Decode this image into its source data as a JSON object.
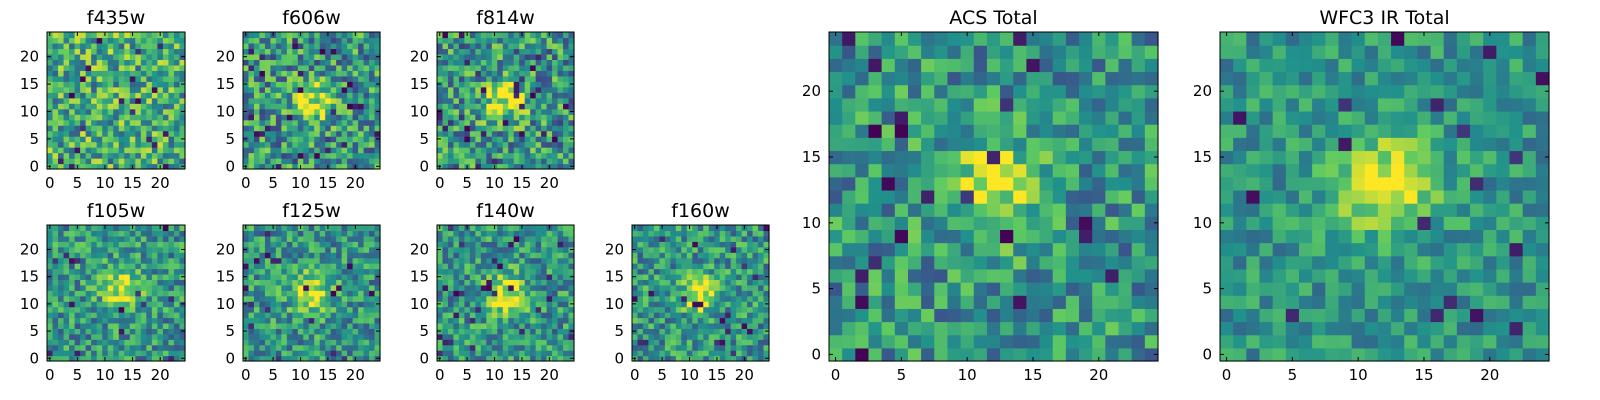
{
  "figure": {
    "colormap": "viridis",
    "colors": [
      "#440154",
      "#3b528b",
      "#21918c",
      "#5ec962",
      "#fde725"
    ]
  },
  "chart_data": [
    {
      "type": "heatmap",
      "title": "f435w",
      "grid": [
        25,
        25
      ],
      "xticks": [
        0,
        5,
        10,
        15,
        20
      ],
      "yticks": [
        0,
        5,
        10,
        15,
        20
      ],
      "xlim": [
        -0.5,
        24.5
      ],
      "ylim": [
        -0.5,
        24.5
      ],
      "peak": null,
      "noise": "high"
    },
    {
      "type": "heatmap",
      "title": "f606w",
      "grid": [
        25,
        25
      ],
      "xticks": [
        0,
        5,
        10,
        15,
        20
      ],
      "yticks": [
        0,
        5,
        10,
        15,
        20
      ],
      "xlim": [
        -0.5,
        24.5
      ],
      "ylim": [
        -0.5,
        24.5
      ],
      "peak": [
        12,
        12
      ],
      "noise": "high"
    },
    {
      "type": "heatmap",
      "title": "f814w",
      "grid": [
        25,
        25
      ],
      "xticks": [
        0,
        5,
        10,
        15,
        20
      ],
      "yticks": [
        0,
        5,
        10,
        15,
        20
      ],
      "xlim": [
        -0.5,
        24.5
      ],
      "ylim": [
        -0.5,
        24.5
      ],
      "peak": [
        12,
        12
      ],
      "noise": "high"
    },
    {
      "type": "heatmap",
      "title": "f105w",
      "grid": [
        25,
        25
      ],
      "xticks": [
        0,
        5,
        10,
        15,
        20
      ],
      "yticks": [
        0,
        5,
        10,
        15,
        20
      ],
      "xlim": [
        -0.5,
        24.5
      ],
      "ylim": [
        -0.5,
        24.5
      ],
      "peak": [
        13,
        13
      ],
      "noise": "medium"
    },
    {
      "type": "heatmap",
      "title": "f125w",
      "grid": [
        25,
        25
      ],
      "xticks": [
        0,
        5,
        10,
        15,
        20
      ],
      "yticks": [
        0,
        5,
        10,
        15,
        20
      ],
      "xlim": [
        -0.5,
        24.5
      ],
      "ylim": [
        -0.5,
        24.5
      ],
      "peak": [
        12,
        12
      ],
      "noise": "medium"
    },
    {
      "type": "heatmap",
      "title": "f140w",
      "grid": [
        25,
        25
      ],
      "xticks": [
        0,
        5,
        10,
        15,
        20
      ],
      "yticks": [
        0,
        5,
        10,
        15,
        20
      ],
      "xlim": [
        -0.5,
        24.5
      ],
      "ylim": [
        -0.5,
        24.5
      ],
      "peak": [
        12,
        12
      ],
      "noise": "medium"
    },
    {
      "type": "heatmap",
      "title": "f160w",
      "grid": [
        25,
        25
      ],
      "xticks": [
        0,
        5,
        10,
        15,
        20
      ],
      "yticks": [
        0,
        5,
        10,
        15,
        20
      ],
      "xlim": [
        -0.5,
        24.5
      ],
      "ylim": [
        -0.5,
        24.5
      ],
      "peak": [
        12,
        12
      ],
      "noise": "medium"
    },
    {
      "type": "heatmap",
      "title": "ACS Total",
      "grid": [
        25,
        25
      ],
      "xticks": [
        0,
        5,
        10,
        15,
        20
      ],
      "yticks": [
        0,
        5,
        10,
        15,
        20
      ],
      "xlim": [
        -0.5,
        24.5
      ],
      "ylim": [
        -0.5,
        24.5
      ],
      "peak": [
        12,
        13
      ],
      "noise": "medium"
    },
    {
      "type": "heatmap",
      "title": "WFC3 IR Total",
      "grid": [
        25,
        25
      ],
      "xticks": [
        0,
        5,
        10,
        15,
        20
      ],
      "yticks": [
        0,
        5,
        10,
        15,
        20
      ],
      "xlim": [
        -0.5,
        24.5
      ],
      "ylim": [
        -0.5,
        24.5
      ],
      "peak": [
        12,
        13
      ],
      "noise": "low"
    }
  ]
}
